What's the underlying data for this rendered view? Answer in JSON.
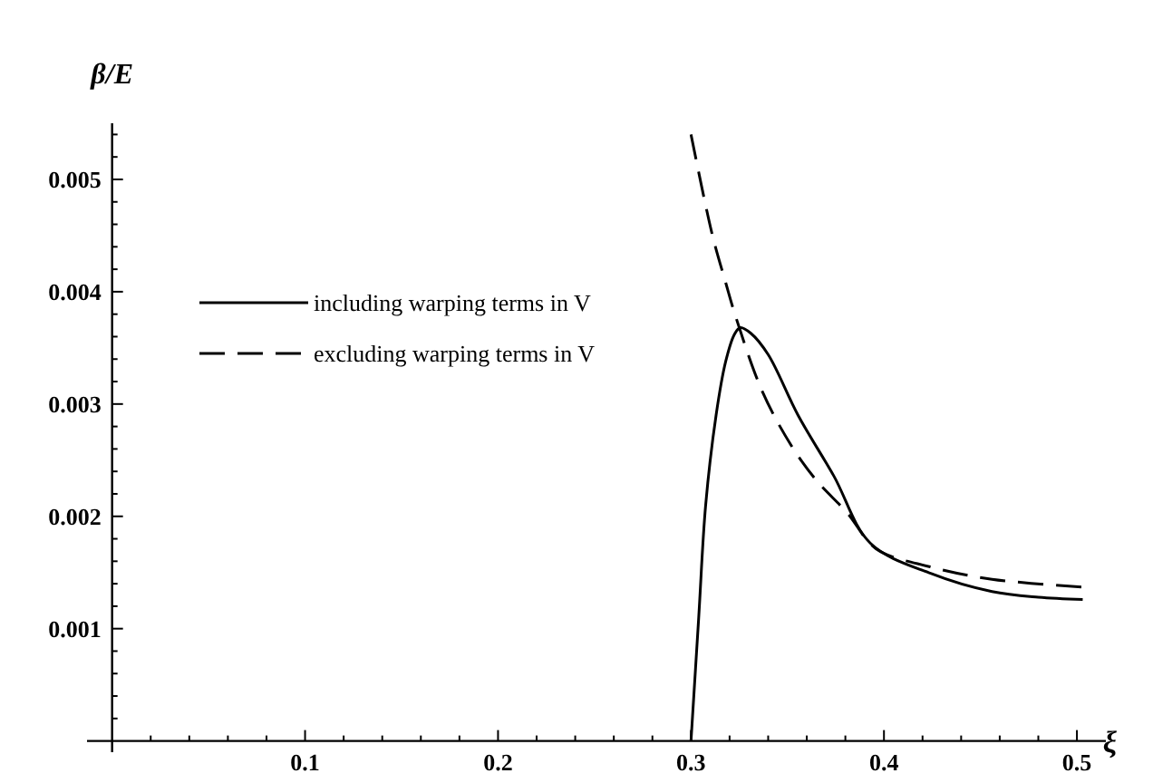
{
  "chart_data": {
    "type": "line",
    "xlabel": "ξ",
    "ylabel": "β/E",
    "xlim": [
      -0.013,
      0.515
    ],
    "ylim": [
      -0.0001,
      0.0055
    ],
    "xticks": [
      {
        "value": 0.1,
        "label": "0.1"
      },
      {
        "value": 0.2,
        "label": "0.2"
      },
      {
        "value": 0.3,
        "label": "0.3"
      },
      {
        "value": 0.4,
        "label": "0.4"
      },
      {
        "value": 0.5,
        "label": "0.5"
      },
      {
        "value": 0.02,
        "label": null
      },
      {
        "value": 0.04,
        "label": null
      },
      {
        "value": 0.06,
        "label": null
      },
      {
        "value": 0.08,
        "label": null
      },
      {
        "value": 0.12,
        "label": null
      },
      {
        "value": 0.14,
        "label": null
      },
      {
        "value": 0.16,
        "label": null
      },
      {
        "value": 0.18,
        "label": null
      },
      {
        "value": 0.22,
        "label": null
      },
      {
        "value": 0.24,
        "label": null
      },
      {
        "value": 0.26,
        "label": null
      },
      {
        "value": 0.28,
        "label": null
      },
      {
        "value": 0.32,
        "label": null
      },
      {
        "value": 0.34,
        "label": null
      },
      {
        "value": 0.36,
        "label": null
      },
      {
        "value": 0.38,
        "label": null
      },
      {
        "value": 0.42,
        "label": null
      },
      {
        "value": 0.44,
        "label": null
      },
      {
        "value": 0.46,
        "label": null
      },
      {
        "value": 0.48,
        "label": null
      }
    ],
    "yticks": [
      {
        "value": 0.001,
        "label": "0.001"
      },
      {
        "value": 0.002,
        "label": "0.002"
      },
      {
        "value": 0.003,
        "label": "0.003"
      },
      {
        "value": 0.004,
        "label": "0.004"
      },
      {
        "value": 0.005,
        "label": "0.005"
      },
      {
        "value": 0.0002,
        "label": null
      },
      {
        "value": 0.0004,
        "label": null
      },
      {
        "value": 0.0006,
        "label": null
      },
      {
        "value": 0.0008,
        "label": null
      },
      {
        "value": 0.0012,
        "label": null
      },
      {
        "value": 0.0014,
        "label": null
      },
      {
        "value": 0.0016,
        "label": null
      },
      {
        "value": 0.0018,
        "label": null
      },
      {
        "value": 0.0022,
        "label": null
      },
      {
        "value": 0.0024,
        "label": null
      },
      {
        "value": 0.0026,
        "label": null
      },
      {
        "value": 0.0028,
        "label": null
      },
      {
        "value": 0.0032,
        "label": null
      },
      {
        "value": 0.0034,
        "label": null
      },
      {
        "value": 0.0036,
        "label": null
      },
      {
        "value": 0.0038,
        "label": null
      },
      {
        "value": 0.0042,
        "label": null
      },
      {
        "value": 0.0044,
        "label": null
      },
      {
        "value": 0.0046,
        "label": null
      },
      {
        "value": 0.0048,
        "label": null
      },
      {
        "value": 0.0052,
        "label": null
      },
      {
        "value": 0.0054,
        "label": null
      }
    ],
    "grid": false,
    "legend": "top left",
    "marker": "none",
    "series": [
      {
        "name": "including warping terms in V",
        "color": "#000000",
        "line_style": "solid",
        "x": [
          0.3,
          0.304,
          0.3076,
          0.313,
          0.318,
          0.3225,
          0.3255,
          0.331,
          0.34,
          0.3555,
          0.374,
          0.393,
          0.4245,
          0.456,
          0.48,
          0.503
        ],
        "values": [
          0,
          0.0011,
          0.0021,
          0.0029,
          0.00338,
          0.00362,
          0.00368,
          0.00363,
          0.00344,
          0.0029,
          0.00236,
          0.00176,
          0.00149,
          0.00133,
          0.00128,
          0.00126
        ]
      },
      {
        "name": "excluding warping terms in V",
        "color": "#000000",
        "line_style": "dashed",
        "x": [
          0.3,
          0.311,
          0.318,
          0.3235,
          0.337,
          0.352,
          0.365,
          0.381,
          0.396,
          0.424,
          0.456,
          0.503
        ],
        "values": [
          0.0054,
          0.00451,
          0.00408,
          0.00376,
          0.00311,
          0.00263,
          0.00232,
          0.00203,
          0.00171,
          0.00155,
          0.00144,
          0.00137
        ]
      }
    ]
  }
}
